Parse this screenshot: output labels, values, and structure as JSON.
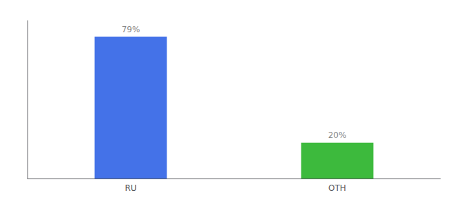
{
  "chart_data": {
    "type": "bar",
    "categories": [
      "RU",
      "OTH"
    ],
    "values": [
      79,
      20
    ],
    "value_labels": [
      "79%",
      "20%"
    ],
    "colors": [
      "#4472e8",
      "#3dba3d"
    ],
    "ylim": [
      0,
      88
    ],
    "yticks": [],
    "tick_labels": "x",
    "grid": false,
    "data_labels": true
  }
}
